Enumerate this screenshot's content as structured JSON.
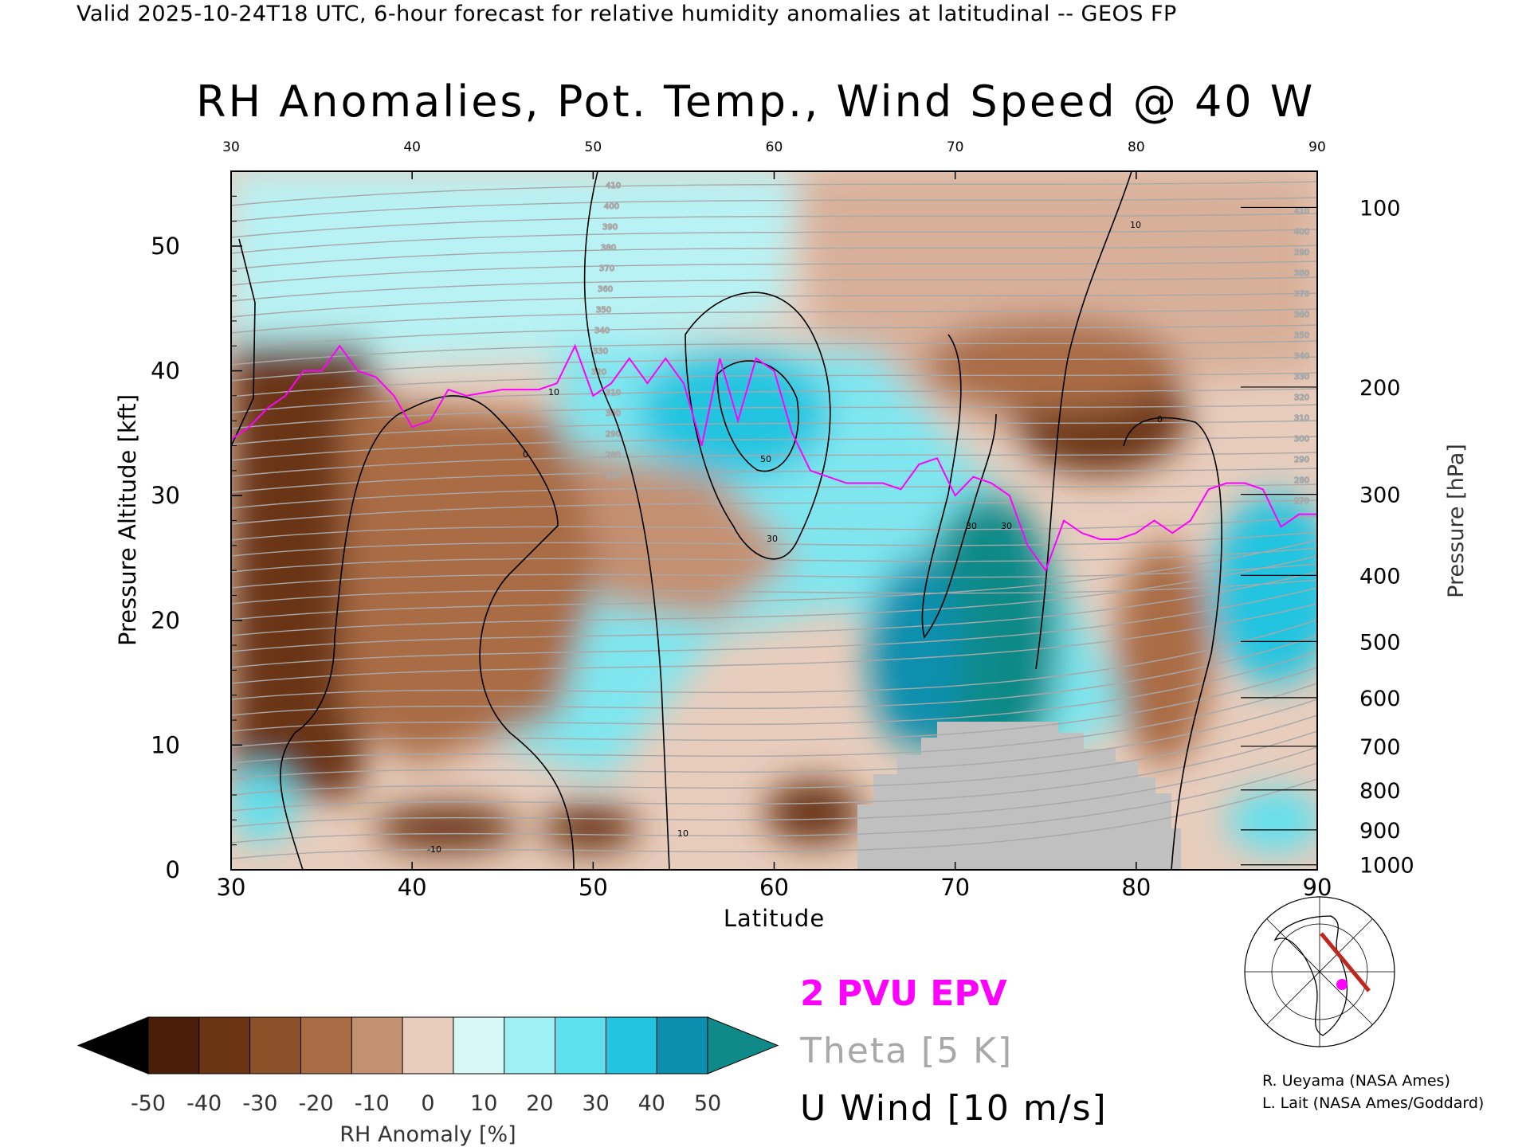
{
  "header": "Valid 2025-10-24T18 UTC, 6-hour forecast for relative humidity anomalies at latitudinal -- GEOS FP",
  "chart_data": {
    "type": "heatmap",
    "title": "RH Anomalies, Pot. Temp., Wind Speed @ 40 W",
    "xlabel": "Latitude",
    "ylabel_left": "Pressure Altitude [kft]",
    "ylabel_right": "Pressure [hPa]",
    "xlim": [
      30,
      90
    ],
    "ylim": [
      0,
      56
    ],
    "x_ticks": [
      "30",
      "40",
      "50",
      "60",
      "70",
      "80",
      "90"
    ],
    "y_ticks": [
      "0",
      "10",
      "20",
      "30",
      "40",
      "50"
    ],
    "pressure_ticks": [
      {
        "label": "100",
        "kft": 53.1
      },
      {
        "label": "200",
        "kft": 38.7
      },
      {
        "label": "300",
        "kft": 30.1
      },
      {
        "label": "400",
        "kft": 23.6
      },
      {
        "label": "500",
        "kft": 18.3
      },
      {
        "label": "600",
        "kft": 13.8
      },
      {
        "label": "700",
        "kft": 9.9
      },
      {
        "label": "800",
        "kft": 6.4
      },
      {
        "label": "900",
        "kft": 3.2
      },
      {
        "label": "1000",
        "kft": 0.4
      }
    ],
    "grid": false,
    "colorbar": {
      "label": "RH Anomaly [%]",
      "ticks": [
        "-50",
        "-40",
        "-30",
        "-20",
        "-10",
        "0",
        "10",
        "20",
        "30",
        "40",
        "50"
      ],
      "colors": [
        "#4a1e08",
        "#6b3514",
        "#8b5128",
        "#a96c45",
        "#c49072",
        "#e8cdbd",
        "#d8f8f8",
        "#9ef0f4",
        "#5fe0ee",
        "#22c4e0",
        "#0a8fae"
      ],
      "under_color": "#000000",
      "over_color": "#108a88"
    },
    "tropopause_epv": [
      [
        30,
        34.5
      ],
      [
        31,
        35.5
      ],
      [
        32,
        37.0
      ],
      [
        33,
        38.0
      ],
      [
        34,
        40.0
      ],
      [
        35,
        40.0
      ],
      [
        36,
        42.0
      ],
      [
        37,
        40.0
      ],
      [
        38,
        39.5
      ],
      [
        39,
        38.0
      ],
      [
        40,
        35.5
      ],
      [
        41,
        36.0
      ],
      [
        42,
        38.5
      ],
      [
        43,
        38.0
      ],
      [
        45,
        38.5
      ],
      [
        47,
        38.5
      ],
      [
        48,
        39.0
      ],
      [
        49,
        42.0
      ],
      [
        50,
        38.0
      ],
      [
        51,
        39.0
      ],
      [
        52,
        41.0
      ],
      [
        53,
        39.0
      ],
      [
        54,
        41.0
      ],
      [
        55,
        39.0
      ],
      [
        56,
        34.0
      ],
      [
        57,
        41.0
      ],
      [
        58,
        36.0
      ],
      [
        59,
        41.0
      ],
      [
        60,
        40.0
      ],
      [
        61,
        35.0
      ],
      [
        62,
        32.0
      ],
      [
        64,
        31.0
      ],
      [
        66,
        31.0
      ],
      [
        67,
        30.5
      ],
      [
        68,
        32.5
      ],
      [
        69,
        33.0
      ],
      [
        70,
        30.0
      ],
      [
        71,
        31.5
      ],
      [
        72,
        31.0
      ],
      [
        73,
        30.0
      ],
      [
        74,
        26.0
      ],
      [
        75,
        24.0
      ],
      [
        76,
        28.0
      ],
      [
        77,
        27.0
      ],
      [
        78,
        26.5
      ],
      [
        79,
        26.5
      ],
      [
        80,
        27.0
      ],
      [
        81,
        28.0
      ],
      [
        82,
        27.0
      ],
      [
        83,
        28.0
      ],
      [
        84,
        30.5
      ],
      [
        85,
        31.0
      ],
      [
        86,
        31.0
      ],
      [
        87,
        30.5
      ],
      [
        88,
        27.5
      ],
      [
        89,
        28.5
      ],
      [
        90,
        28.5
      ]
    ],
    "theta_labels": [
      "410",
      "400",
      "390",
      "380",
      "370",
      "360",
      "350",
      "340",
      "330",
      "320",
      "310",
      "300",
      "290",
      "280",
      "270"
    ],
    "wind_labels": [
      "10",
      "0",
      "-10",
      "10",
      "30",
      "50",
      "30",
      "30",
      "10",
      "0"
    ],
    "terrain_mask_latitude_range": [
      65,
      83
    ]
  },
  "legend": {
    "pvu": "2 PVU EPV",
    "theta": "Theta [5 K]",
    "wind": "U Wind [10 m/s]",
    "pvu_color": "#ff00ff",
    "theta_color": "#a8a8a8",
    "wind_color": "#000000"
  },
  "inset_map": {
    "track_color": "#c0281e",
    "marker_color": "#ff00ff"
  },
  "credits": {
    "line1": "R. Ueyama (NASA Ames)",
    "line2": "L. Lait (NASA Ames/Goddard)"
  }
}
